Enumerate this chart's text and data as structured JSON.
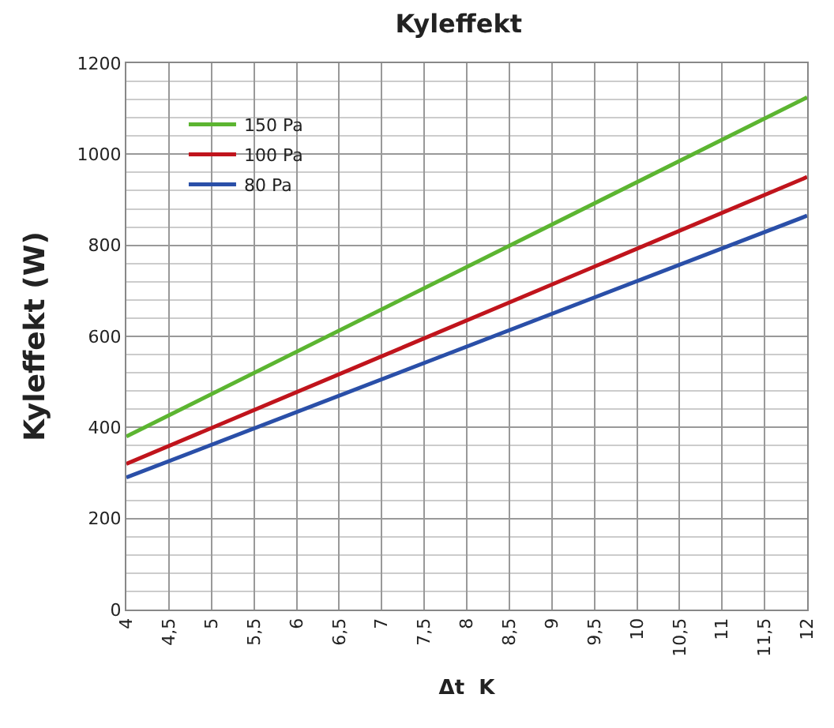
{
  "chart_data": {
    "type": "line",
    "title": "Kyleffekt",
    "xlabel": "Δt  K",
    "ylabel": "Kyleffekt (W)",
    "x": [
      4,
      12
    ],
    "series": [
      {
        "name": "150 Pa",
        "color": "#5cb531",
        "values": [
          380,
          1125
        ]
      },
      {
        "name": "100 Pa",
        "color": "#c0141c",
        "values": [
          320,
          950
        ]
      },
      {
        "name": "80 Pa",
        "color": "#2a4fa8",
        "values": [
          290,
          865
        ]
      }
    ],
    "xlim": [
      4,
      12
    ],
    "xticks": [
      4,
      {
        "value": 4.5,
        "label": "4,5"
      },
      5,
      {
        "value": 5.5,
        "label": "5,5"
      },
      6,
      {
        "value": 6.5,
        "label": "6,5"
      },
      7,
      {
        "value": 7.5,
        "label": "7,5"
      },
      8,
      {
        "value": 8.5,
        "label": "8,5"
      },
      9,
      {
        "value": 9.5,
        "label": "9,5"
      },
      10,
      {
        "value": 10.5,
        "label": "10,5"
      },
      11,
      {
        "value": 11.5,
        "label": "11,5"
      },
      12
    ],
    "ylim": [
      0,
      1200
    ],
    "yticks": [
      0,
      200,
      400,
      600,
      800,
      1000,
      1200
    ],
    "grid": true,
    "legend": "top left",
    "marker": "none",
    "line_style": "solid"
  }
}
